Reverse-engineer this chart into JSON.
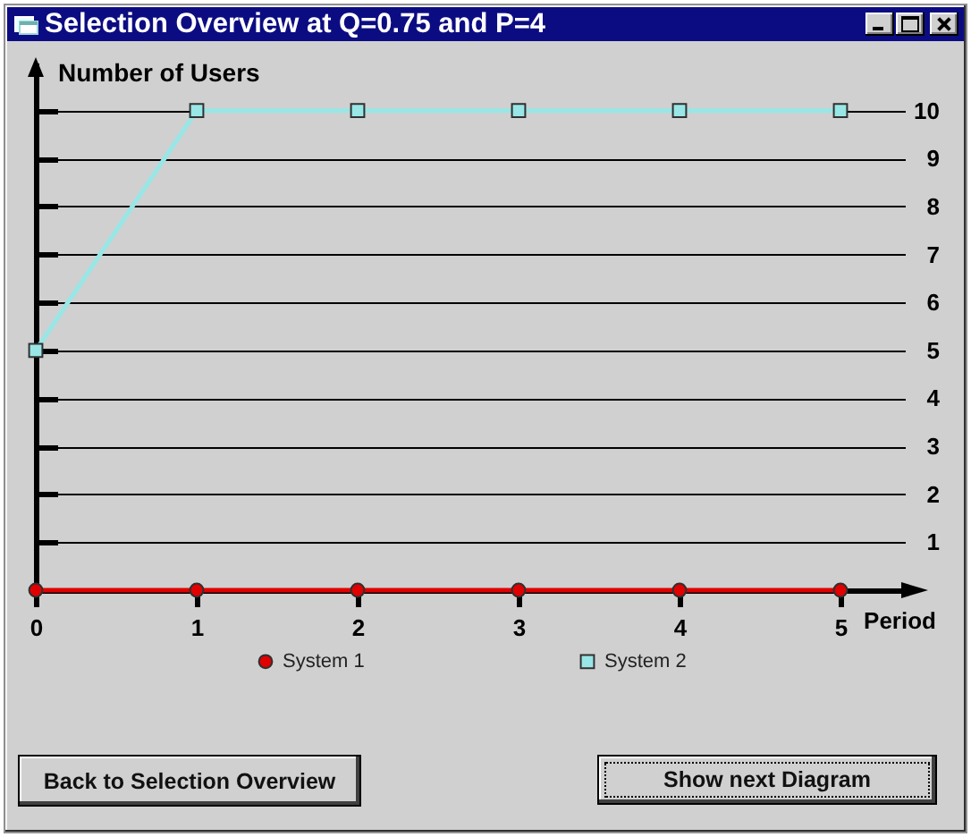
{
  "chart_data": {
    "type": "line",
    "title": "Selection Overview at Q=0.75 and P=4",
    "xlabel": "Period",
    "ylabel": "Number of Users",
    "x": [
      0,
      1,
      2,
      3,
      4,
      5
    ],
    "series": [
      {
        "name": "System 1",
        "color": "#e00000",
        "marker": "circle",
        "values": [
          0,
          0,
          0,
          0,
          0,
          0
        ]
      },
      {
        "name": "System 2",
        "color": "#99e6e6",
        "marker": "square",
        "values": [
          5,
          10,
          10,
          10,
          10,
          10
        ]
      }
    ],
    "xlim": [
      0,
      5.4
    ],
    "ylim": [
      0,
      11
    ],
    "xticks": [
      0,
      1,
      2,
      3,
      4,
      5
    ],
    "yticks": [
      1,
      2,
      3,
      4,
      5,
      6,
      7,
      8,
      9,
      10
    ],
    "grid": "y",
    "legend": "bottom",
    "annotations": [
      "Back to Selection Overview",
      "Show next Diagram"
    ]
  }
}
